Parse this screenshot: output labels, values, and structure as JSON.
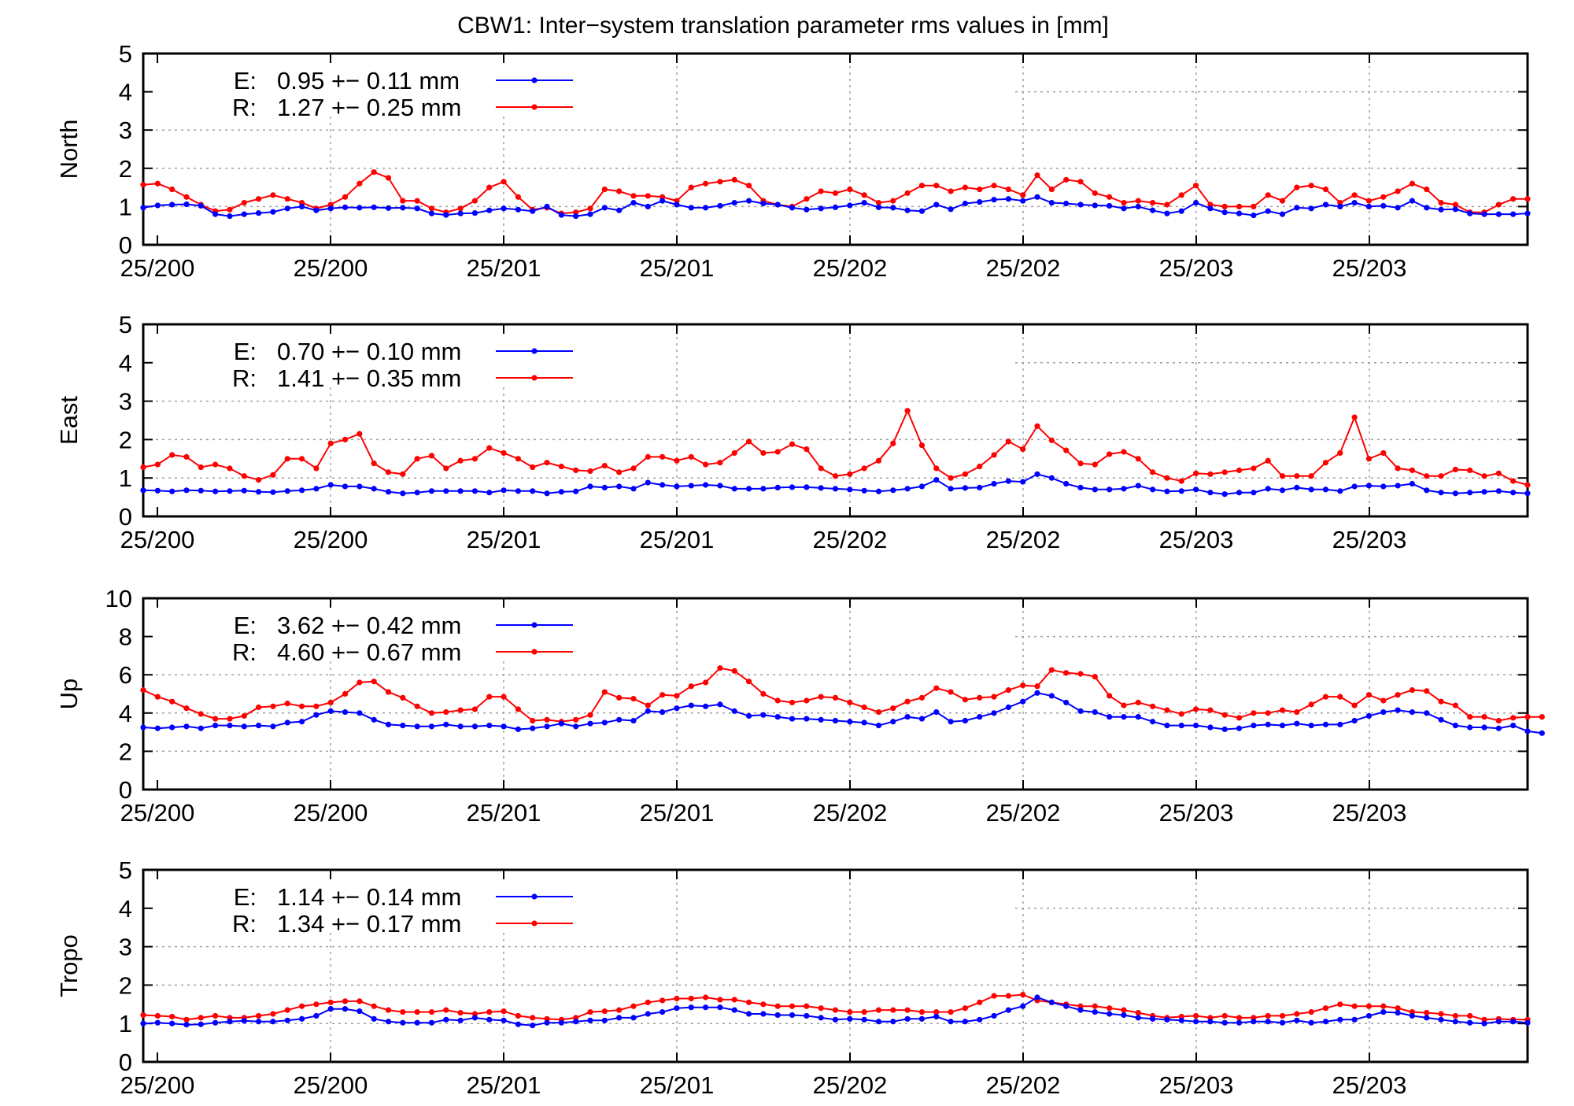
{
  "chart_data": {
    "title": "CBW1: Inter−system translation parameter rms values in [mm]",
    "type": "line",
    "colors": {
      "E": "#0000ff",
      "R": "#ff0000",
      "grid": "#a0a0a0"
    },
    "x_tick_labels": [
      "25/200",
      "25/200",
      "25/201",
      "25/201",
      "25/202",
      "25/202",
      "25/203",
      "25/203"
    ],
    "x_index_range": [
      0,
      96
    ],
    "grid": true,
    "legend_position": "top-left",
    "panels": [
      {
        "ylabel": "North",
        "ylim": [
          0,
          5
        ],
        "yticks": [
          0,
          1,
          2,
          3,
          4,
          5
        ],
        "series": [
          {
            "name": "E",
            "legend_value": "0.95 +− 0.11 mm",
            "values": [
              0.97,
              1.03,
              1.05,
              1.06,
              1.02,
              0.8,
              0.75,
              0.8,
              0.83,
              0.86,
              0.95,
              1.0,
              0.9,
              0.95,
              0.98,
              0.97,
              0.98,
              0.96,
              0.97,
              0.95,
              0.82,
              0.78,
              0.82,
              0.83,
              0.9,
              0.95,
              0.92,
              0.88,
              1.0,
              0.78,
              0.75,
              0.8,
              0.97,
              0.9,
              1.1,
              1.0,
              1.15,
              1.05,
              0.97,
              0.97,
              1.02,
              1.1,
              1.15,
              1.08,
              1.05,
              0.97,
              0.92,
              0.95,
              0.98,
              1.03,
              1.1,
              0.98,
              0.97,
              0.9,
              0.88,
              1.05,
              0.93,
              1.08,
              1.12,
              1.18,
              1.2,
              1.15,
              1.25,
              1.1,
              1.08,
              1.05,
              1.03,
              1.02,
              0.95,
              1.0,
              0.9,
              0.82,
              0.88,
              1.1,
              0.95,
              0.85,
              0.82,
              0.77,
              0.88,
              0.8,
              0.97,
              0.95,
              1.05,
              1.0,
              1.1,
              1.0,
              1.02,
              0.97,
              1.15,
              0.97,
              0.92,
              0.93,
              0.82,
              0.8,
              0.8,
              0.8,
              0.82
            ]
          },
          {
            "name": "R",
            "legend_value": "1.27 +− 0.25 mm",
            "values": [
              1.57,
              1.6,
              1.45,
              1.25,
              1.05,
              0.88,
              0.92,
              1.1,
              1.2,
              1.3,
              1.2,
              1.1,
              0.95,
              1.05,
              1.25,
              1.6,
              1.9,
              1.75,
              1.15,
              1.15,
              0.95,
              0.85,
              0.95,
              1.15,
              1.5,
              1.65,
              1.25,
              0.92,
              0.97,
              0.82,
              0.85,
              0.95,
              1.45,
              1.4,
              1.28,
              1.28,
              1.25,
              1.15,
              1.5,
              1.6,
              1.65,
              1.7,
              1.55,
              1.15,
              1.05,
              1.0,
              1.2,
              1.4,
              1.35,
              1.45,
              1.3,
              1.1,
              1.15,
              1.35,
              1.55,
              1.55,
              1.4,
              1.5,
              1.45,
              1.55,
              1.45,
              1.3,
              1.82,
              1.45,
              1.7,
              1.65,
              1.35,
              1.25,
              1.1,
              1.15,
              1.1,
              1.05,
              1.3,
              1.55,
              1.05,
              1.0,
              1.0,
              1.0,
              1.3,
              1.15,
              1.5,
              1.55,
              1.45,
              1.1,
              1.3,
              1.15,
              1.25,
              1.4,
              1.6,
              1.45,
              1.1,
              1.05,
              0.85,
              0.85,
              1.05,
              1.2,
              1.2
            ]
          }
        ]
      },
      {
        "ylabel": "East",
        "ylim": [
          0,
          5
        ],
        "yticks": [
          0,
          1,
          2,
          3,
          4,
          5
        ],
        "series": [
          {
            "name": "E",
            "legend_value": "0.70 +− 0.10 mm",
            "values": [
              0.68,
              0.67,
              0.65,
              0.68,
              0.67,
              0.65,
              0.66,
              0.67,
              0.64,
              0.63,
              0.66,
              0.68,
              0.72,
              0.82,
              0.78,
              0.78,
              0.72,
              0.64,
              0.6,
              0.62,
              0.66,
              0.66,
              0.66,
              0.66,
              0.62,
              0.68,
              0.66,
              0.66,
              0.6,
              0.64,
              0.65,
              0.78,
              0.75,
              0.78,
              0.72,
              0.88,
              0.82,
              0.78,
              0.8,
              0.82,
              0.8,
              0.72,
              0.72,
              0.72,
              0.75,
              0.76,
              0.76,
              0.74,
              0.72,
              0.7,
              0.67,
              0.65,
              0.68,
              0.72,
              0.78,
              0.95,
              0.72,
              0.74,
              0.75,
              0.85,
              0.92,
              0.9,
              1.1,
              1.0,
              0.85,
              0.75,
              0.7,
              0.7,
              0.72,
              0.8,
              0.7,
              0.65,
              0.66,
              0.7,
              0.62,
              0.58,
              0.62,
              0.62,
              0.72,
              0.68,
              0.75,
              0.7,
              0.7,
              0.66,
              0.78,
              0.8,
              0.78,
              0.8,
              0.85,
              0.68,
              0.62,
              0.6,
              0.62,
              0.64,
              0.66,
              0.62,
              0.6
            ]
          },
          {
            "name": "R",
            "legend_value": "1.41 +− 0.35 mm",
            "values": [
              1.28,
              1.35,
              1.6,
              1.55,
              1.28,
              1.35,
              1.25,
              1.05,
              0.95,
              1.08,
              1.5,
              1.5,
              1.25,
              1.9,
              2.0,
              2.15,
              1.38,
              1.15,
              1.1,
              1.5,
              1.58,
              1.25,
              1.45,
              1.5,
              1.78,
              1.65,
              1.5,
              1.28,
              1.4,
              1.3,
              1.2,
              1.18,
              1.32,
              1.15,
              1.25,
              1.55,
              1.55,
              1.45,
              1.55,
              1.35,
              1.4,
              1.65,
              1.95,
              1.65,
              1.68,
              1.88,
              1.75,
              1.25,
              1.05,
              1.1,
              1.25,
              1.45,
              1.9,
              2.75,
              1.85,
              1.25,
              1.0,
              1.1,
              1.3,
              1.6,
              1.95,
              1.75,
              2.35,
              1.98,
              1.72,
              1.38,
              1.35,
              1.62,
              1.68,
              1.5,
              1.15,
              1.0,
              0.92,
              1.12,
              1.1,
              1.15,
              1.2,
              1.25,
              1.45,
              1.05,
              1.05,
              1.05,
              1.4,
              1.65,
              2.58,
              1.5,
              1.65,
              1.25,
              1.2,
              1.05,
              1.05,
              1.22,
              1.2,
              1.05,
              1.12,
              0.92,
              0.82
            ]
          }
        ]
      },
      {
        "ylabel": "Up",
        "ylim": [
          0,
          10
        ],
        "yticks": [
          0,
          2,
          4,
          6,
          8,
          10
        ],
        "series": [
          {
            "name": "E",
            "legend_value": "3.62 +− 0.42 mm",
            "values": [
              3.25,
              3.2,
              3.25,
              3.3,
              3.2,
              3.35,
              3.35,
              3.3,
              3.35,
              3.3,
              3.5,
              3.55,
              3.9,
              4.1,
              4.05,
              4.0,
              3.65,
              3.4,
              3.35,
              3.3,
              3.3,
              3.4,
              3.3,
              3.3,
              3.35,
              3.3,
              3.15,
              3.2,
              3.3,
              3.45,
              3.3,
              3.45,
              3.5,
              3.65,
              3.6,
              4.1,
              4.05,
              4.25,
              4.4,
              4.35,
              4.45,
              4.1,
              3.85,
              3.9,
              3.8,
              3.7,
              3.7,
              3.65,
              3.6,
              3.55,
              3.5,
              3.35,
              3.55,
              3.8,
              3.7,
              4.05,
              3.55,
              3.6,
              3.8,
              4.0,
              4.3,
              4.6,
              5.05,
              4.9,
              4.55,
              4.1,
              4.05,
              3.8,
              3.8,
              3.8,
              3.55,
              3.35,
              3.35,
              3.35,
              3.25,
              3.15,
              3.2,
              3.35,
              3.4,
              3.35,
              3.45,
              3.35,
              3.4,
              3.4,
              3.6,
              3.85,
              4.05,
              4.15,
              4.05,
              4.0,
              3.65,
              3.35,
              3.25,
              3.25,
              3.2,
              3.35,
              3.05,
              2.95
            ]
          },
          {
            "name": "R",
            "legend_value": "4.60 +− 0.67 mm",
            "values": [
              5.2,
              4.85,
              4.6,
              4.25,
              3.95,
              3.7,
              3.7,
              3.85,
              4.3,
              4.35,
              4.5,
              4.35,
              4.35,
              4.55,
              5.0,
              5.6,
              5.65,
              5.1,
              4.8,
              4.35,
              4.0,
              4.05,
              4.15,
              4.2,
              4.85,
              4.85,
              4.2,
              3.6,
              3.65,
              3.55,
              3.65,
              3.9,
              5.1,
              4.8,
              4.75,
              4.4,
              4.95,
              4.9,
              5.4,
              5.6,
              6.35,
              6.2,
              5.65,
              5.0,
              4.65,
              4.55,
              4.65,
              4.85,
              4.8,
              4.55,
              4.3,
              4.05,
              4.25,
              4.6,
              4.8,
              5.3,
              5.1,
              4.7,
              4.8,
              4.85,
              5.2,
              5.45,
              5.4,
              6.25,
              6.1,
              6.05,
              5.9,
              4.9,
              4.4,
              4.55,
              4.35,
              4.15,
              3.95,
              4.2,
              4.15,
              3.9,
              3.75,
              4.0,
              4.0,
              4.15,
              4.05,
              4.45,
              4.85,
              4.85,
              4.4,
              4.95,
              4.65,
              4.95,
              5.2,
              5.15,
              4.6,
              4.4,
              3.8,
              3.8,
              3.6,
              3.75,
              3.8,
              3.8
            ]
          }
        ]
      },
      {
        "ylabel": "Tropo",
        "ylim": [
          0,
          5
        ],
        "yticks": [
          0,
          1,
          2,
          3,
          4,
          5
        ],
        "series": [
          {
            "name": "E",
            "legend_value": "1.14 +− 0.14 mm",
            "values": [
              1.0,
              1.02,
              1.0,
              0.97,
              0.98,
              1.02,
              1.05,
              1.07,
              1.05,
              1.05,
              1.08,
              1.12,
              1.2,
              1.38,
              1.38,
              1.32,
              1.12,
              1.05,
              1.02,
              1.02,
              1.02,
              1.1,
              1.08,
              1.15,
              1.1,
              1.08,
              0.98,
              0.95,
              1.02,
              1.02,
              1.05,
              1.08,
              1.08,
              1.15,
              1.15,
              1.25,
              1.3,
              1.4,
              1.42,
              1.42,
              1.42,
              1.35,
              1.25,
              1.25,
              1.22,
              1.22,
              1.2,
              1.15,
              1.1,
              1.12,
              1.1,
              1.05,
              1.05,
              1.12,
              1.12,
              1.18,
              1.05,
              1.05,
              1.1,
              1.2,
              1.35,
              1.45,
              1.68,
              1.55,
              1.45,
              1.35,
              1.3,
              1.25,
              1.22,
              1.15,
              1.12,
              1.1,
              1.08,
              1.05,
              1.05,
              1.02,
              1.02,
              1.05,
              1.05,
              1.02,
              1.08,
              1.02,
              1.05,
              1.1,
              1.1,
              1.2,
              1.3,
              1.28,
              1.2,
              1.15,
              1.1,
              1.05,
              1.02,
              1.0,
              1.05,
              1.05,
              1.02
            ]
          },
          {
            "name": "R",
            "legend_value": "1.34 +− 0.17 mm",
            "values": [
              1.22,
              1.2,
              1.18,
              1.1,
              1.15,
              1.2,
              1.15,
              1.15,
              1.2,
              1.25,
              1.35,
              1.45,
              1.5,
              1.55,
              1.58,
              1.58,
              1.45,
              1.35,
              1.3,
              1.3,
              1.3,
              1.35,
              1.28,
              1.25,
              1.3,
              1.32,
              1.2,
              1.15,
              1.12,
              1.1,
              1.15,
              1.3,
              1.32,
              1.35,
              1.45,
              1.55,
              1.6,
              1.65,
              1.65,
              1.68,
              1.62,
              1.62,
              1.55,
              1.5,
              1.45,
              1.45,
              1.45,
              1.4,
              1.35,
              1.3,
              1.3,
              1.35,
              1.35,
              1.35,
              1.3,
              1.3,
              1.3,
              1.4,
              1.55,
              1.72,
              1.72,
              1.75,
              1.6,
              1.55,
              1.5,
              1.45,
              1.45,
              1.4,
              1.35,
              1.28,
              1.2,
              1.15,
              1.18,
              1.2,
              1.15,
              1.2,
              1.15,
              1.15,
              1.2,
              1.2,
              1.25,
              1.3,
              1.4,
              1.5,
              1.45,
              1.45,
              1.45,
              1.4,
              1.3,
              1.28,
              1.25,
              1.2,
              1.2,
              1.1,
              1.12,
              1.1,
              1.1
            ]
          }
        ]
      }
    ]
  }
}
